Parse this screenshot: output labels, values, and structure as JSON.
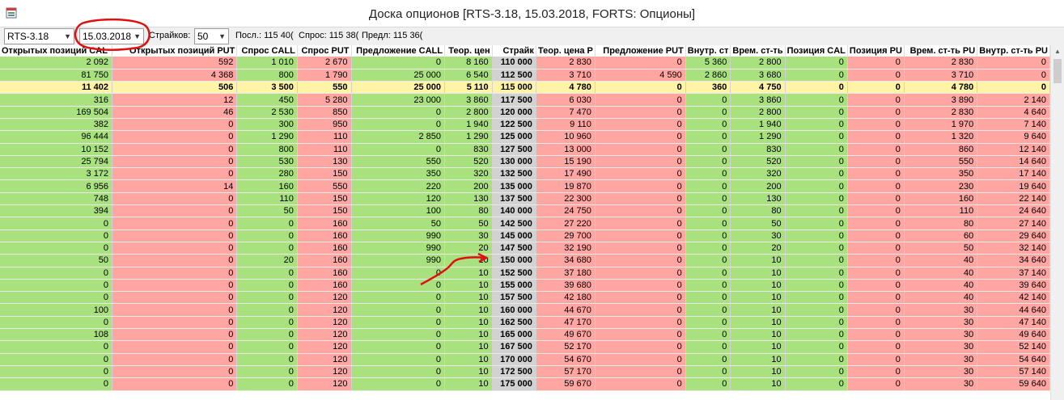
{
  "window": {
    "title": "Доска опционов [RTS-3.18, 15.03.2018, FORTS: Опционы]",
    "icon": "table-icon"
  },
  "toolbar": {
    "instrument": "RTS-3.18",
    "expiration": "15.03.2018",
    "strikes_label": "Страйков:",
    "strikes_value": "50",
    "last_label": "Посл.: 115 40(",
    "bid_label": "Спрос: 115 38(",
    "offer_label": "Предл: 115 36("
  },
  "grid": {
    "columns": [
      "Открытых позиций CAL",
      "Открытых позиций PUT",
      "Спрос CALL",
      "Спрос PUT",
      "Предложение CALL",
      "Теор. цен",
      "Страйк",
      "Теор. цена P",
      "Предложение PUT",
      "Внутр. ст",
      "Врем. ст-ть",
      "Позиция CAL",
      "Позиция PU",
      "Врем. ст-ть PU",
      "Внутр. ст-ть PU"
    ],
    "rows": [
      [
        "2 092",
        "592",
        "1 010",
        "2 670",
        "0",
        "8 160",
        "110 000",
        "2 830",
        "0",
        "5 360",
        "2 800",
        "0",
        "0",
        "2 830",
        "0"
      ],
      [
        "81 750",
        "4 368",
        "800",
        "1 790",
        "25 000",
        "6 540",
        "112 500",
        "3 710",
        "4 590",
        "2 860",
        "3 680",
        "0",
        "0",
        "3 710",
        "0"
      ],
      [
        "11 402",
        "506",
        "3 500",
        "550",
        "25 000",
        "5 110",
        "115 000",
        "4 780",
        "0",
        "360",
        "4 750",
        "0",
        "0",
        "4 780",
        "0"
      ],
      [
        "316",
        "12",
        "450",
        "5 280",
        "23 000",
        "3 860",
        "117 500",
        "6 030",
        "0",
        "0",
        "3 860",
        "0",
        "0",
        "3 890",
        "2 140"
      ],
      [
        "169 504",
        "46",
        "2 530",
        "850",
        "0",
        "2 800",
        "120 000",
        "7 470",
        "0",
        "0",
        "2 800",
        "0",
        "0",
        "2 830",
        "4 640"
      ],
      [
        "382",
        "0",
        "300",
        "950",
        "0",
        "1 940",
        "122 500",
        "9 110",
        "0",
        "0",
        "1 940",
        "0",
        "0",
        "1 970",
        "7 140"
      ],
      [
        "96 444",
        "0",
        "1 290",
        "110",
        "2 850",
        "1 290",
        "125 000",
        "10 960",
        "0",
        "0",
        "1 290",
        "0",
        "0",
        "1 320",
        "9 640"
      ],
      [
        "10 152",
        "0",
        "800",
        "110",
        "0",
        "830",
        "127 500",
        "13 000",
        "0",
        "0",
        "830",
        "0",
        "0",
        "860",
        "12 140"
      ],
      [
        "25 794",
        "0",
        "530",
        "130",
        "550",
        "520",
        "130 000",
        "15 190",
        "0",
        "0",
        "520",
        "0",
        "0",
        "550",
        "14 640"
      ],
      [
        "3 172",
        "0",
        "280",
        "150",
        "350",
        "320",
        "132 500",
        "17 490",
        "0",
        "0",
        "320",
        "0",
        "0",
        "350",
        "17 140"
      ],
      [
        "6 956",
        "14",
        "160",
        "550",
        "220",
        "200",
        "135 000",
        "19 870",
        "0",
        "0",
        "200",
        "0",
        "0",
        "230",
        "19 640"
      ],
      [
        "748",
        "0",
        "110",
        "150",
        "120",
        "130",
        "137 500",
        "22 300",
        "0",
        "0",
        "130",
        "0",
        "0",
        "160",
        "22 140"
      ],
      [
        "394",
        "0",
        "50",
        "150",
        "100",
        "80",
        "140 000",
        "24 750",
        "0",
        "0",
        "80",
        "0",
        "0",
        "110",
        "24 640"
      ],
      [
        "0",
        "0",
        "0",
        "160",
        "50",
        "50",
        "142 500",
        "27 220",
        "0",
        "0",
        "50",
        "0",
        "0",
        "80",
        "27 140"
      ],
      [
        "0",
        "0",
        "0",
        "160",
        "990",
        "30",
        "145 000",
        "29 700",
        "0",
        "0",
        "30",
        "0",
        "0",
        "60",
        "29 640"
      ],
      [
        "0",
        "0",
        "0",
        "160",
        "990",
        "20",
        "147 500",
        "32 190",
        "0",
        "0",
        "20",
        "0",
        "0",
        "50",
        "32 140"
      ],
      [
        "50",
        "0",
        "20",
        "160",
        "990",
        "10",
        "150 000",
        "34 680",
        "0",
        "0",
        "10",
        "0",
        "0",
        "40",
        "34 640"
      ],
      [
        "0",
        "0",
        "0",
        "160",
        "0",
        "10",
        "152 500",
        "37 180",
        "0",
        "0",
        "10",
        "0",
        "0",
        "40",
        "37 140"
      ],
      [
        "0",
        "0",
        "0",
        "160",
        "0",
        "10",
        "155 000",
        "39 680",
        "0",
        "0",
        "10",
        "0",
        "0",
        "40",
        "39 640"
      ],
      [
        "0",
        "0",
        "0",
        "120",
        "0",
        "10",
        "157 500",
        "42 180",
        "0",
        "0",
        "10",
        "0",
        "0",
        "40",
        "42 140"
      ],
      [
        "100",
        "0",
        "0",
        "120",
        "0",
        "10",
        "160 000",
        "44 670",
        "0",
        "0",
        "10",
        "0",
        "0",
        "30",
        "44 640"
      ],
      [
        "0",
        "0",
        "0",
        "120",
        "0",
        "10",
        "162 500",
        "47 170",
        "0",
        "0",
        "10",
        "0",
        "0",
        "30",
        "47 140"
      ],
      [
        "108",
        "0",
        "0",
        "120",
        "0",
        "10",
        "165 000",
        "49 670",
        "0",
        "0",
        "10",
        "0",
        "0",
        "30",
        "49 640"
      ],
      [
        "0",
        "0",
        "0",
        "120",
        "0",
        "10",
        "167 500",
        "52 170",
        "0",
        "0",
        "10",
        "0",
        "0",
        "30",
        "52 140"
      ],
      [
        "0",
        "0",
        "0",
        "120",
        "0",
        "10",
        "170 000",
        "54 670",
        "0",
        "0",
        "10",
        "0",
        "0",
        "30",
        "54 640"
      ],
      [
        "0",
        "0",
        "0",
        "120",
        "0",
        "10",
        "172 500",
        "57 170",
        "0",
        "0",
        "10",
        "0",
        "0",
        "30",
        "57 140"
      ],
      [
        "0",
        "0",
        "0",
        "120",
        "0",
        "10",
        "175 000",
        "59 670",
        "0",
        "0",
        "10",
        "0",
        "0",
        "30",
        "59 640"
      ]
    ],
    "atm_row": 2,
    "column_colors": [
      "g",
      "r",
      "g",
      "r",
      "g",
      "g",
      "s",
      "r",
      "r",
      "g",
      "g",
      "g",
      "r",
      "r",
      "r"
    ]
  },
  "colors": {
    "call_bg": "#a8e17e",
    "put_bg": "#ffa6a3",
    "strike_bg": "#d2d2d2",
    "atm_bg": "#fff3a6",
    "annotation": "#e01010"
  }
}
